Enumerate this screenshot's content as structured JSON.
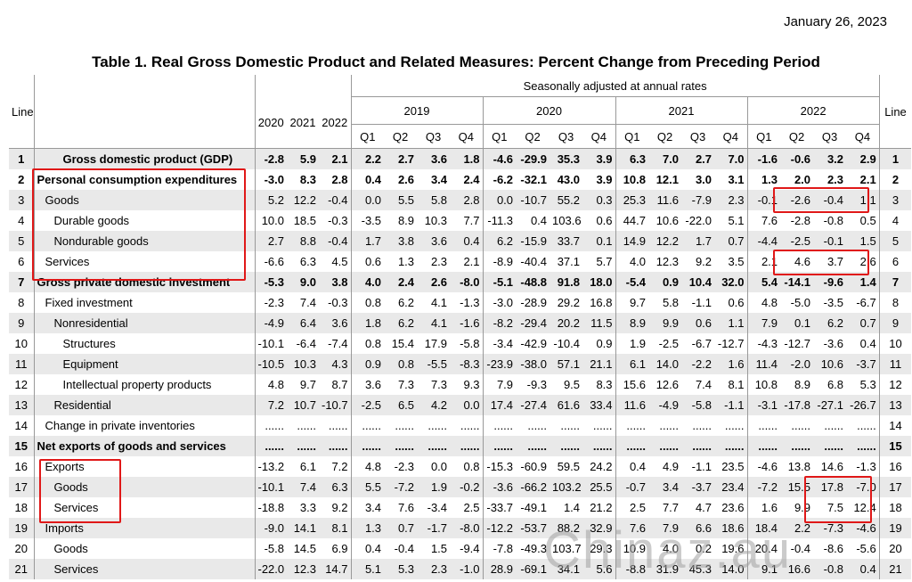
{
  "date": "January 26, 2023",
  "title": "Table 1. Real Gross Domestic Product and Related Measures: Percent Change from Preceding Period",
  "header": {
    "line_label": "Line",
    "line_label_right": "Line",
    "seasonal_note": "Seasonally adjusted at annual rates",
    "annual_years": [
      "2020",
      "2021",
      "2022"
    ],
    "quarter_years": [
      "2019",
      "2020",
      "2021",
      "2022"
    ],
    "quarters": [
      "Q1",
      "Q2",
      "Q3",
      "Q4",
      "Q1",
      "Q2",
      "Q3",
      "Q4",
      "Q1",
      "Q2",
      "Q3",
      "Q4",
      "Q1",
      "Q2",
      "Q3",
      "Q4"
    ]
  },
  "rows": [
    {
      "line": "1",
      "label": "Gross domestic product (GDP)",
      "indent": 3,
      "bold": true,
      "values": [
        "-2.8",
        "5.9",
        "2.1",
        "2.2",
        "2.7",
        "3.6",
        "1.8",
        "-4.6",
        "-29.9",
        "35.3",
        "3.9",
        "6.3",
        "7.0",
        "2.7",
        "7.0",
        "-1.6",
        "-0.6",
        "3.2",
        "2.9"
      ]
    },
    {
      "line": "2",
      "label": "Personal consumption expenditures",
      "indent": 0,
      "bold": true,
      "values": [
        "-3.0",
        "8.3",
        "2.8",
        "0.4",
        "2.6",
        "3.4",
        "2.4",
        "-6.2",
        "-32.1",
        "43.0",
        "3.9",
        "10.8",
        "12.1",
        "3.0",
        "3.1",
        "1.3",
        "2.0",
        "2.3",
        "2.1"
      ]
    },
    {
      "line": "3",
      "label": "Goods",
      "indent": 1,
      "bold": false,
      "values": [
        "5.2",
        "12.2",
        "-0.4",
        "0.0",
        "5.5",
        "5.8",
        "2.8",
        "0.0",
        "-10.7",
        "55.2",
        "0.3",
        "25.3",
        "11.6",
        "-7.9",
        "2.3",
        "-0.1",
        "-2.6",
        "-0.4",
        "1.1"
      ]
    },
    {
      "line": "4",
      "label": "Durable goods",
      "indent": 2,
      "bold": false,
      "values": [
        "10.0",
        "18.5",
        "-0.3",
        "-3.5",
        "8.9",
        "10.3",
        "7.7",
        "-11.3",
        "0.4",
        "103.6",
        "0.6",
        "44.7",
        "10.6",
        "-22.0",
        "5.1",
        "7.6",
        "-2.8",
        "-0.8",
        "0.5"
      ]
    },
    {
      "line": "5",
      "label": "Nondurable goods",
      "indent": 2,
      "bold": false,
      "values": [
        "2.7",
        "8.8",
        "-0.4",
        "1.7",
        "3.8",
        "3.6",
        "0.4",
        "6.2",
        "-15.9",
        "33.7",
        "0.1",
        "14.9",
        "12.2",
        "1.7",
        "0.7",
        "-4.4",
        "-2.5",
        "-0.1",
        "1.5"
      ]
    },
    {
      "line": "6",
      "label": "Services",
      "indent": 1,
      "bold": false,
      "values": [
        "-6.6",
        "6.3",
        "4.5",
        "0.6",
        "1.3",
        "2.3",
        "2.1",
        "-8.9",
        "-40.4",
        "37.1",
        "5.7",
        "4.0",
        "12.3",
        "9.2",
        "3.5",
        "2.1",
        "4.6",
        "3.7",
        "2.6"
      ]
    },
    {
      "line": "7",
      "label": "Gross private domestic investment",
      "indent": 0,
      "bold": true,
      "values": [
        "-5.3",
        "9.0",
        "3.8",
        "4.0",
        "2.4",
        "2.6",
        "-8.0",
        "-5.1",
        "-48.8",
        "91.8",
        "18.0",
        "-5.4",
        "0.9",
        "10.4",
        "32.0",
        "5.4",
        "-14.1",
        "-9.6",
        "1.4"
      ]
    },
    {
      "line": "8",
      "label": "Fixed investment",
      "indent": 1,
      "bold": false,
      "values": [
        "-2.3",
        "7.4",
        "-0.3",
        "0.8",
        "6.2",
        "4.1",
        "-1.3",
        "-3.0",
        "-28.9",
        "29.2",
        "16.8",
        "9.7",
        "5.8",
        "-1.1",
        "0.6",
        "4.8",
        "-5.0",
        "-3.5",
        "-6.7"
      ]
    },
    {
      "line": "9",
      "label": "Nonresidential",
      "indent": 2,
      "bold": false,
      "values": [
        "-4.9",
        "6.4",
        "3.6",
        "1.8",
        "6.2",
        "4.1",
        "-1.6",
        "-8.2",
        "-29.4",
        "20.2",
        "11.5",
        "8.9",
        "9.9",
        "0.6",
        "1.1",
        "7.9",
        "0.1",
        "6.2",
        "0.7"
      ]
    },
    {
      "line": "10",
      "label": "Structures",
      "indent": 3,
      "bold": false,
      "values": [
        "-10.1",
        "-6.4",
        "-7.4",
        "0.8",
        "15.4",
        "17.9",
        "-5.8",
        "-3.4",
        "-42.9",
        "-10.4",
        "0.9",
        "1.9",
        "-2.5",
        "-6.7",
        "-12.7",
        "-4.3",
        "-12.7",
        "-3.6",
        "0.4"
      ]
    },
    {
      "line": "11",
      "label": "Equipment",
      "indent": 3,
      "bold": false,
      "values": [
        "-10.5",
        "10.3",
        "4.3",
        "0.9",
        "0.8",
        "-5.5",
        "-8.3",
        "-23.9",
        "-38.0",
        "57.1",
        "21.1",
        "6.1",
        "14.0",
        "-2.2",
        "1.6",
        "11.4",
        "-2.0",
        "10.6",
        "-3.7"
      ]
    },
    {
      "line": "12",
      "label": "Intellectual property products",
      "indent": 3,
      "bold": false,
      "values": [
        "4.8",
        "9.7",
        "8.7",
        "3.6",
        "7.3",
        "7.3",
        "9.3",
        "7.9",
        "-9.3",
        "9.5",
        "8.3",
        "15.6",
        "12.6",
        "7.4",
        "8.1",
        "10.8",
        "8.9",
        "6.8",
        "5.3"
      ]
    },
    {
      "line": "13",
      "label": "Residential",
      "indent": 2,
      "bold": false,
      "values": [
        "7.2",
        "10.7",
        "-10.7",
        "-2.5",
        "6.5",
        "4.2",
        "0.0",
        "17.4",
        "-27.4",
        "61.6",
        "33.4",
        "11.6",
        "-4.9",
        "-5.8",
        "-1.1",
        "-3.1",
        "-17.8",
        "-27.1",
        "-26.7"
      ]
    },
    {
      "line": "14",
      "label": "Change in private inventories",
      "indent": 1,
      "bold": false,
      "values": [
        "......",
        "......",
        "......",
        "......",
        "......",
        "......",
        "......",
        "......",
        "......",
        "......",
        "......",
        "......",
        "......",
        "......",
        "......",
        "......",
        "......",
        "......",
        "......"
      ]
    },
    {
      "line": "15",
      "label": "Net exports of goods and services",
      "indent": 0,
      "bold": true,
      "values": [
        "......",
        "......",
        "......",
        "......",
        "......",
        "......",
        "......",
        "......",
        "......",
        "......",
        "......",
        "......",
        "......",
        "......",
        "......",
        "......",
        "......",
        "......",
        "......"
      ]
    },
    {
      "line": "16",
      "label": "Exports",
      "indent": 1,
      "bold": false,
      "values": [
        "-13.2",
        "6.1",
        "7.2",
        "4.8",
        "-2.3",
        "0.0",
        "0.8",
        "-15.3",
        "-60.9",
        "59.5",
        "24.2",
        "0.4",
        "4.9",
        "-1.1",
        "23.5",
        "-4.6",
        "13.8",
        "14.6",
        "-1.3"
      ]
    },
    {
      "line": "17",
      "label": "Goods",
      "indent": 2,
      "bold": false,
      "values": [
        "-10.1",
        "7.4",
        "6.3",
        "5.5",
        "-7.2",
        "1.9",
        "-0.2",
        "-3.6",
        "-66.2",
        "103.2",
        "25.5",
        "-0.7",
        "3.4",
        "-3.7",
        "23.4",
        "-7.2",
        "15.5",
        "17.8",
        "-7.0"
      ]
    },
    {
      "line": "18",
      "label": "Services",
      "indent": 2,
      "bold": false,
      "values": [
        "-18.8",
        "3.3",
        "9.2",
        "3.4",
        "7.6",
        "-3.4",
        "2.5",
        "-33.7",
        "-49.1",
        "1.4",
        "21.2",
        "2.5",
        "7.7",
        "4.7",
        "23.6",
        "1.6",
        "9.9",
        "7.5",
        "12.4"
      ]
    },
    {
      "line": "19",
      "label": "Imports",
      "indent": 1,
      "bold": false,
      "values": [
        "-9.0",
        "14.1",
        "8.1",
        "1.3",
        "0.7",
        "-1.7",
        "-8.0",
        "-12.2",
        "-53.7",
        "88.2",
        "32.9",
        "7.6",
        "7.9",
        "6.6",
        "18.6",
        "18.4",
        "2.2",
        "-7.3",
        "-4.6"
      ]
    },
    {
      "line": "20",
      "label": "Goods",
      "indent": 2,
      "bold": false,
      "values": [
        "-5.8",
        "14.5",
        "6.9",
        "0.4",
        "-0.4",
        "1.5",
        "-9.4",
        "-7.8",
        "-49.3",
        "103.7",
        "29.3",
        "10.9",
        "4.0",
        "0.2",
        "19.6",
        "20.4",
        "-0.4",
        "-8.6",
        "-5.6"
      ]
    },
    {
      "line": "21",
      "label": "Services",
      "indent": 2,
      "bold": false,
      "values": [
        "-22.0",
        "12.3",
        "14.7",
        "5.1",
        "5.3",
        "2.3",
        "-1.0",
        "28.9",
        "-69.1",
        "34.1",
        "5.6",
        "-8.8",
        "31.9",
        "45.3",
        "14.0",
        "9.1",
        "16.6",
        "-0.8",
        "0.4"
      ]
    }
  ],
  "watermark": "Chinaz.au",
  "colors": {
    "highlight_box": "#e01818",
    "row_shade": "#e9e9e9"
  }
}
